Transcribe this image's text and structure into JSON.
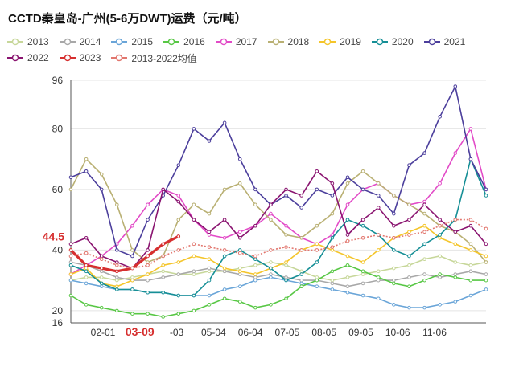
{
  "title": "CCTD秦皇岛-广州(5-6万DWT)运费（元/吨）",
  "chart_data": {
    "type": "line",
    "title": "CCTD秦皇岛-广州(5-6万DWT)运费（元/吨）",
    "ylim": [
      16,
      96
    ],
    "y_ticks": [
      16,
      20,
      40,
      60,
      80,
      96
    ],
    "x_tick_labels": [
      "02-01",
      "03-09",
      "-03",
      "05-04",
      "06-04",
      "07-05",
      "08-05",
      "09-05",
      "10-06",
      "11-06"
    ],
    "highlight_x_label": "03-09",
    "highlight_y_label": "44.5",
    "grid": true,
    "legend_position": "top",
    "series": [
      {
        "name": "2013",
        "color": "#c7d79a",
        "dashed": false,
        "y": [
          30,
          31,
          31,
          30,
          31,
          32,
          33,
          32,
          32,
          33,
          33,
          34,
          35,
          36,
          35,
          33,
          31,
          30,
          31,
          32,
          33,
          34,
          35,
          37,
          38,
          36,
          35,
          36
        ]
      },
      {
        "name": "2014",
        "color": "#a8a8a8",
        "dashed": false,
        "y": [
          36,
          35,
          33,
          31,
          30,
          30,
          31,
          32,
          33,
          34,
          33,
          32,
          31,
          32,
          31,
          30,
          30,
          29,
          28,
          29,
          30,
          30,
          31,
          32,
          31,
          32,
          33,
          32
        ]
      },
      {
        "name": "2015",
        "color": "#6aa5d8",
        "dashed": false,
        "y": [
          30,
          29,
          28,
          27,
          27,
          26,
          26,
          25,
          25,
          25,
          27,
          28,
          30,
          31,
          30,
          29,
          28,
          27,
          26,
          25,
          24,
          22,
          21,
          21,
          22,
          23,
          25,
          27
        ]
      },
      {
        "name": "2016",
        "color": "#58c745",
        "dashed": false,
        "y": [
          25,
          22,
          21,
          20,
          19,
          19,
          18,
          19,
          20,
          22,
          24,
          23,
          21,
          22,
          24,
          28,
          30,
          33,
          35,
          33,
          31,
          29,
          28,
          30,
          32,
          31,
          30,
          30
        ]
      },
      {
        "name": "2017",
        "color": "#e24bc7",
        "dashed": false,
        "y": [
          32,
          35,
          38,
          42,
          48,
          55,
          60,
          58,
          50,
          45,
          44,
          46,
          48,
          52,
          48,
          44,
          42,
          45,
          55,
          60,
          62,
          58,
          55,
          56,
          62,
          72,
          80,
          60
        ]
      },
      {
        "name": "2018",
        "color": "#b9b073",
        "dashed": false,
        "y": [
          60,
          70,
          65,
          55,
          40,
          36,
          38,
          50,
          55,
          52,
          60,
          62,
          55,
          50,
          45,
          44,
          48,
          52,
          62,
          66,
          62,
          58,
          55,
          52,
          48,
          46,
          42,
          36
        ]
      },
      {
        "name": "2019",
        "color": "#f4c52a",
        "dashed": false,
        "y": [
          32,
          34,
          29,
          28,
          30,
          32,
          35,
          36,
          38,
          37,
          34,
          33,
          32,
          34,
          36,
          40,
          42,
          40,
          38,
          36,
          40,
          44,
          46,
          48,
          44,
          42,
          40,
          38
        ]
      },
      {
        "name": "2020",
        "color": "#168f96",
        "dashed": false,
        "y": [
          35,
          33,
          29,
          27,
          27,
          26,
          26,
          25,
          25,
          30,
          38,
          40,
          37,
          34,
          30,
          32,
          36,
          44,
          50,
          48,
          45,
          40,
          38,
          42,
          45,
          50,
          70,
          58
        ]
      },
      {
        "name": "2021",
        "color": "#4c3f9c",
        "dashed": false,
        "y": [
          64,
          66,
          60,
          40,
          38,
          50,
          58,
          68,
          80,
          76,
          82,
          70,
          60,
          55,
          58,
          54,
          60,
          58,
          64,
          60,
          58,
          52,
          68,
          72,
          84,
          94,
          70,
          60
        ]
      },
      {
        "name": "2022",
        "color": "#8a1470",
        "dashed": false,
        "y": [
          42,
          44,
          38,
          36,
          34,
          40,
          60,
          56,
          50,
          46,
          50,
          44,
          48,
          55,
          60,
          58,
          66,
          62,
          45,
          50,
          54,
          48,
          50,
          55,
          50,
          46,
          48,
          42
        ]
      },
      {
        "name": "2023",
        "color": "#d62f2f",
        "dashed": false,
        "y": [
          40,
          35,
          34,
          33,
          34,
          38,
          42,
          44.5
        ]
      },
      {
        "name": "2013-2022均值",
        "color": "#e2776f",
        "dashed": true,
        "y": [
          38,
          39,
          37,
          35,
          34,
          35,
          38,
          40,
          42,
          41,
          40,
          39,
          38,
          40,
          41,
          40,
          40,
          41,
          43,
          44,
          45,
          44,
          45,
          46,
          48,
          50,
          50,
          47
        ]
      }
    ]
  }
}
